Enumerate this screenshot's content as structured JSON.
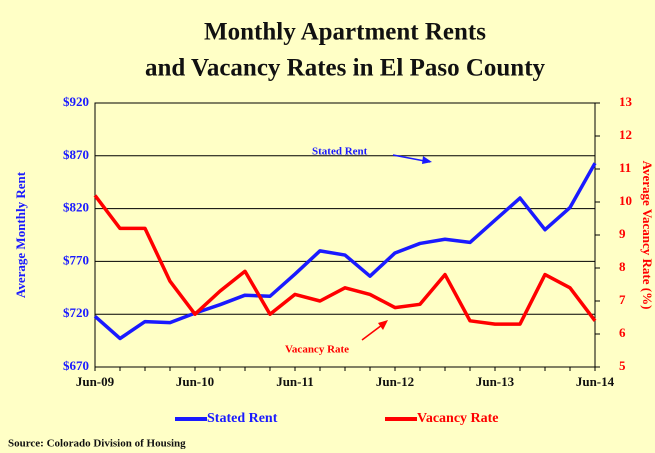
{
  "chart_data": {
    "type": "line",
    "title": "Monthly Apartment Rents",
    "subtitle": "and Vacancy Rates in El Paso County",
    "ylabel": "Average Monthly Rent",
    "y2label": "Average Vacancy Rate (%)",
    "categories": [
      "Jun-09",
      null,
      null,
      null,
      "Jun-10",
      null,
      null,
      null,
      "Jun-11",
      null,
      null,
      null,
      "Jun-12",
      null,
      null,
      null,
      "Jun-13",
      null,
      null,
      null,
      "Jun-14"
    ],
    "series": [
      {
        "name": "Stated Rent",
        "color": "#1a1aff",
        "values": [
          718,
          697,
          713,
          712,
          721,
          729,
          738,
          737,
          758,
          780,
          776,
          756,
          778,
          787,
          791,
          788,
          809,
          830,
          800,
          821,
          863
        ]
      },
      {
        "name": "Vacancy Rate",
        "color": "#ff0000",
        "axis": "y2",
        "values": [
          10.2,
          9.2,
          9.2,
          7.6,
          6.6,
          7.3,
          7.9,
          6.6,
          7.2,
          7.0,
          7.4,
          7.2,
          6.8,
          6.9,
          7.8,
          6.4,
          6.3,
          6.3,
          7.8,
          7.4,
          6.4
        ]
      }
    ],
    "ylim": [
      670,
      920
    ],
    "yticks": [
      {
        "value": 670,
        "label": "$670"
      },
      {
        "value": 720,
        "label": "$720"
      },
      {
        "value": 770,
        "label": "$770"
      },
      {
        "value": 820,
        "label": "$820"
      },
      {
        "value": 870,
        "label": "$870"
      },
      {
        "value": 920,
        "label": "$920"
      }
    ],
    "y2lim": [
      5,
      13
    ],
    "y2ticks": [
      5,
      6,
      7,
      8,
      9,
      10,
      11,
      12,
      13
    ],
    "grid": true,
    "annotations": [
      "Stated Rent",
      "Vacancy Rate"
    ],
    "source": "Source: Colorado Division of Housing"
  }
}
